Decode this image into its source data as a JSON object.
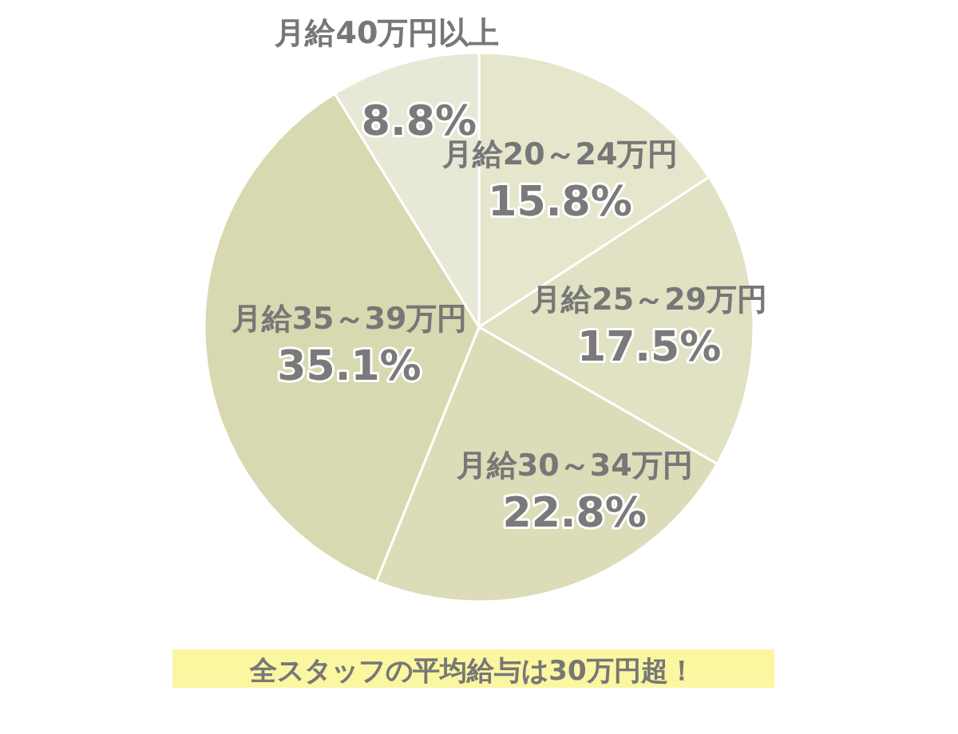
{
  "chart_data": {
    "type": "pie",
    "categories": [
      "月給20～24万円",
      "月給25～29万円",
      "月給30～34万円",
      "月給35～39万円",
      "月給40万円以上"
    ],
    "values": [
      15.8,
      17.5,
      22.8,
      35.1,
      8.8
    ],
    "value_labels": [
      "15.8%",
      "17.5%",
      "22.8%",
      "35.1%",
      "8.8%"
    ],
    "colors": [
      "#e6e6cc",
      "#e1e1c3",
      "#dcdcb9",
      "#d8d9b0",
      "#e8e8d6"
    ],
    "annotations": [
      "全スタッフの平均給与は30万円超！"
    ]
  }
}
